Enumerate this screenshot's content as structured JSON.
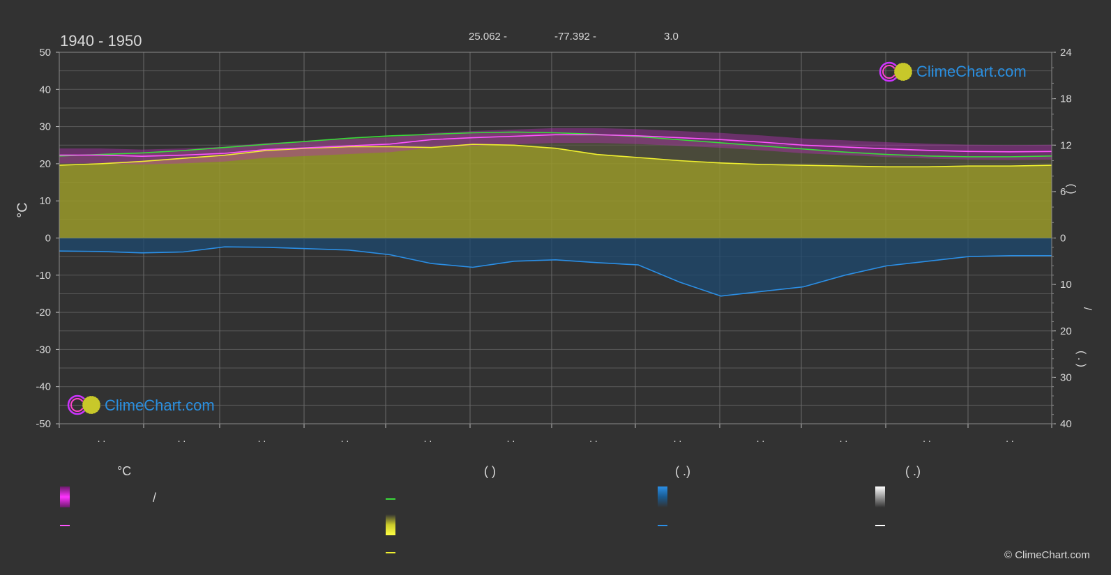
{
  "header": {
    "period": "1940 - 1950",
    "lat": "25.062 -",
    "lon": "-77.392 -",
    "elev": "3.0"
  },
  "brand": {
    "logo_text": "ClimeChart.com",
    "copyright": "© ClimeChart.com"
  },
  "axes": {
    "left_unit": "°C",
    "left_ticks": [
      "50",
      "40",
      "30",
      "20",
      "10",
      "0",
      "-10",
      "-20",
      "-30",
      "-40",
      "-50"
    ],
    "right_upper_ticks": [
      "24",
      "18",
      "12",
      "6",
      "0"
    ],
    "right_lower_ticks": [
      "10",
      "20",
      "30",
      "40"
    ],
    "right_upper_label": "(   )",
    "right_lower_label": "/",
    "right_lower_label2": "( . )",
    "month_labels": [
      ". .",
      ". .",
      ". .",
      ". .",
      ". .",
      ". .",
      ". .",
      ". .",
      ". .",
      ". .",
      ". .",
      ". ."
    ]
  },
  "legend": {
    "col1_header": "°C",
    "col1_row1_text": "/",
    "col2_header": "(           )",
    "col3_header": "(    .)",
    "col4_header": "(    .)"
  },
  "colors": {
    "background": "#323232",
    "daylight": "#3adb3a",
    "sunshine": "#f0f030",
    "temp": "#ff55ff",
    "precip": "#2b8fe6",
    "snow": "#ffffff"
  },
  "chart_data": {
    "type": "line",
    "x": [
      0,
      0.5,
      1,
      1.5,
      2,
      2.5,
      3,
      3.5,
      4,
      4.5,
      5,
      5.5,
      6,
      6.5,
      7,
      7.5,
      8,
      8.5,
      9,
      9.5,
      10,
      10.5,
      11,
      11.5,
      12
    ],
    "ylim_left": [
      -50,
      50
    ],
    "ylim_right_hours": [
      0,
      24
    ],
    "ylim_right_precip_mm": [
      0,
      40
    ],
    "series": [
      {
        "key": "daylight_hours",
        "axis": "hours",
        "values": [
          10.6,
          10.8,
          11.0,
          11.3,
          11.7,
          12.1,
          12.5,
          12.9,
          13.2,
          13.4,
          13.6,
          13.7,
          13.6,
          13.4,
          13.1,
          12.7,
          12.3,
          11.9,
          11.5,
          11.1,
          10.8,
          10.6,
          10.5,
          10.5,
          10.6
        ]
      },
      {
        "key": "sunshine_hours",
        "axis": "hours",
        "values": [
          9.4,
          9.6,
          9.9,
          10.3,
          10.7,
          11.3,
          11.6,
          11.8,
          11.8,
          11.7,
          12.1,
          12.0,
          11.6,
          10.8,
          10.4,
          10.0,
          9.7,
          9.5,
          9.4,
          9.3,
          9.2,
          9.2,
          9.3,
          9.3,
          9.4
        ]
      },
      {
        "key": "temp_mean",
        "axis": "celsius",
        "values": [
          22.3,
          22.3,
          22.0,
          22.3,
          22.8,
          23.8,
          24.3,
          24.8,
          25.3,
          26.5,
          27.0,
          27.4,
          27.8,
          27.8,
          27.5,
          27.0,
          26.5,
          25.8,
          25.0,
          24.5,
          24.0,
          23.6,
          23.3,
          23.2,
          23.3
        ]
      },
      {
        "key": "precip_mm",
        "axis": "mm",
        "values": [
          2.8,
          2.9,
          3.2,
          3.0,
          1.9,
          2.0,
          2.3,
          2.6,
          3.6,
          5.5,
          6.3,
          5.0,
          4.7,
          5.3,
          5.8,
          9.5,
          12.5,
          11.5,
          10.5,
          8.0,
          6.0,
          5.0,
          4.0,
          3.8,
          3.8
        ]
      }
    ]
  }
}
